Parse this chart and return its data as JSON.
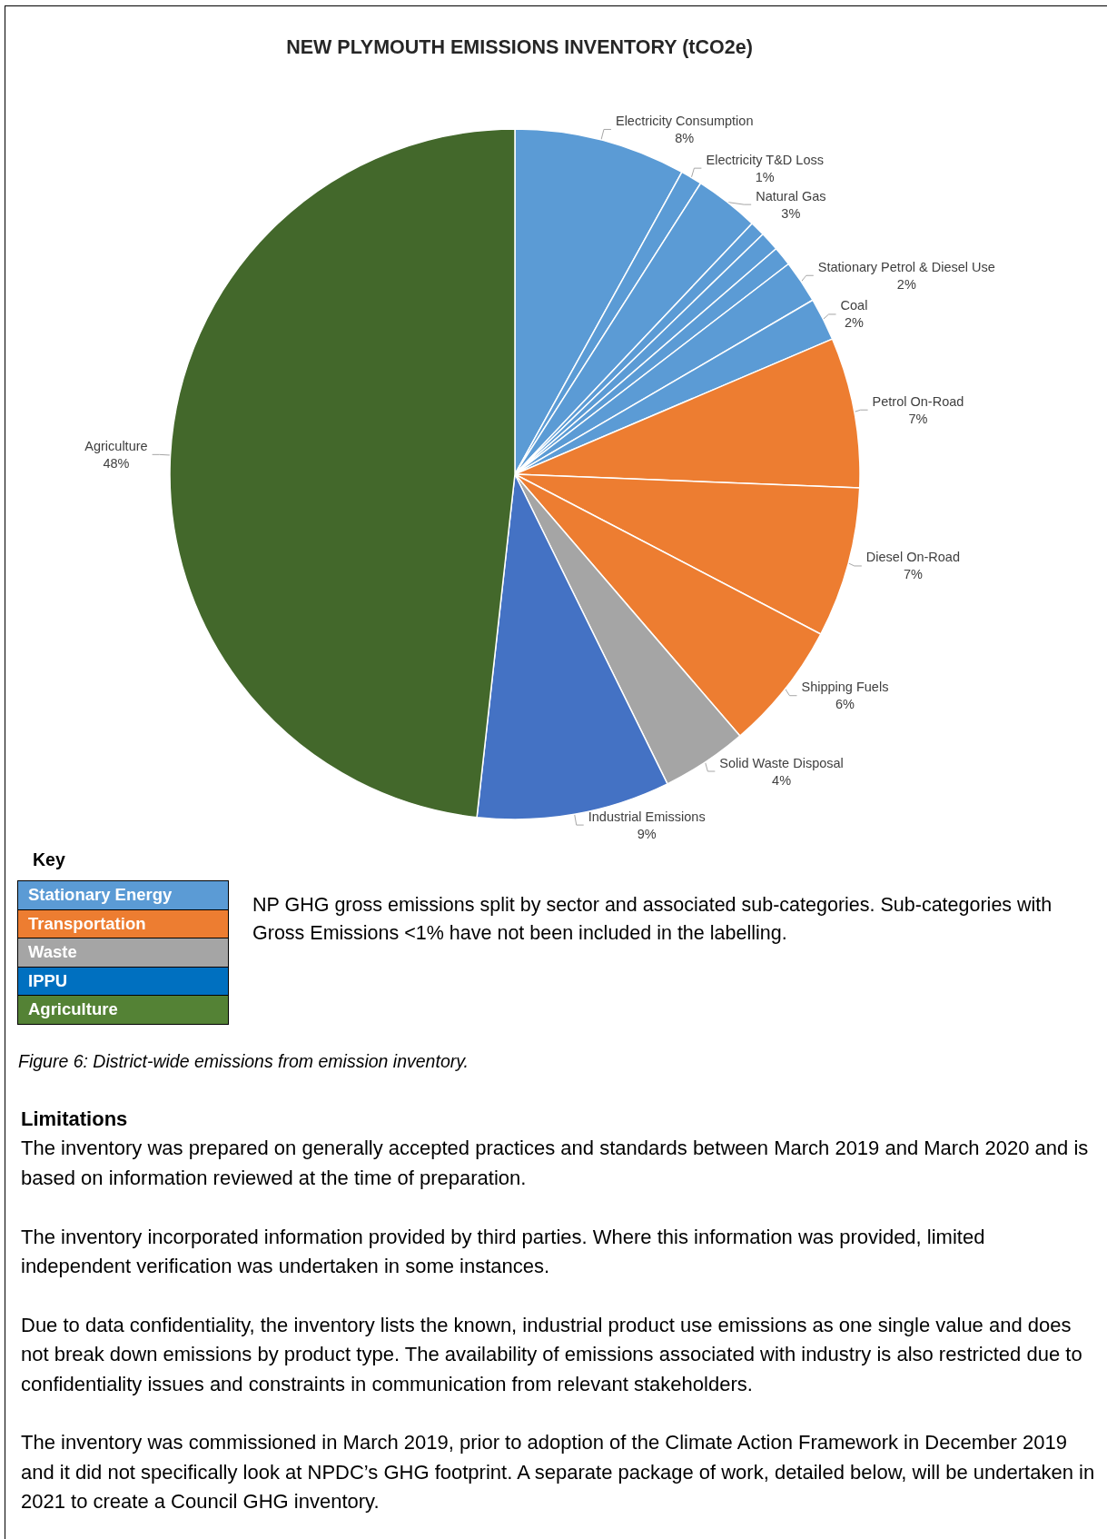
{
  "chart_data": [
    {
      "type": "pie",
      "title": "NEW PLYMOUTH EMISSIONS INVENTORY (tCO2e)",
      "categories": [
        "Electricity Consumption",
        "Electricity T&D Loss",
        "Natural Gas",
        null,
        null,
        null,
        "Stationary Petrol & Diesel Use",
        "Coal",
        "Petrol On-Road",
        "Diesel On-Road",
        "Shipping Fuels",
        "Solid Waste Disposal",
        "Industrial Emissions",
        "Agriculture"
      ],
      "values": [
        8,
        1,
        3,
        0.7,
        0.9,
        0.9,
        2,
        2,
        7,
        7,
        6,
        4,
        9,
        48
      ],
      "value_labels": [
        "8%",
        "1%",
        "3%",
        null,
        null,
        null,
        "2%",
        "2%",
        "7%",
        "7%",
        "6%",
        "4%",
        "9%",
        "48%"
      ],
      "colors": [
        "#5b9bd5",
        "#5b9bd5",
        "#5b9bd5",
        "#5b9bd5",
        "#5b9bd5",
        "#5b9bd5",
        "#5b9bd5",
        "#5b9bd5",
        "#ed7d31",
        "#ed7d31",
        "#ed7d31",
        "#a5a5a5",
        "#4472c4",
        "#43682b"
      ],
      "annotations": [
        "NP GHG gross emissions split by sector and associated sub-categories. Sub-categories with Gross Emissions <1% have not been included in the labelling.",
        "Figure 6: District-wide emissions from emission inventory.",
        "Limitations",
        "The inventory was prepared on generally accepted practices and standards between March 2019 and March 2020 and is based on information reviewed at the time of preparation.",
        "The inventory incorporated information provided by third parties. Where this information was provided, limited independent verification was undertaken in some instances.",
        "Due to data confidentiality, the inventory lists the known, industrial product use emissions as one single value and does not break down emissions by product type. The availability of emissions associated with industry is also restricted due to confidentiality issues and constraints in communication from relevant stakeholders.",
        "The inventory was commissioned in March 2019, prior to adoption of the Climate Action Framework in December 2019 and it did not specifically look at NPDC’s GHG footprint. A separate package of work, detailed below, will be undertaken in 2021 to create a Council GHG inventory."
      ]
    },
    {
      "type": "other",
      "title": "Key",
      "categories": [
        "Stationary Energy",
        "Transportation",
        "Waste",
        "IPPU",
        "Agriculture"
      ],
      "colors": [
        "#5b9bd5",
        "#ed7d31",
        "#a5a5a5",
        "#0070c0",
        "#548235"
      ]
    }
  ]
}
